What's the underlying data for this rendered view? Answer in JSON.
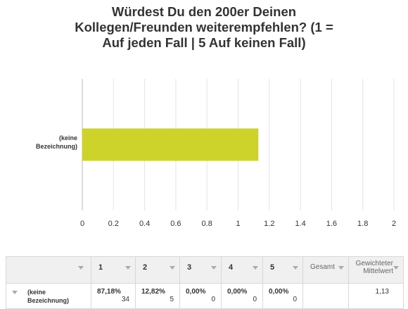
{
  "title_lines": [
    "Würdest Du den 200er Deinen",
    "Kollegen/Freunden weiterempfehlen? (1 =",
    "Auf jeden Fall | 5 Auf keinen Fall)"
  ],
  "chart_data": {
    "type": "bar",
    "orientation": "horizontal",
    "categories": [
      "(keine Bezeichnung)"
    ],
    "values": [
      1.13
    ],
    "xlim": [
      0,
      2
    ],
    "xticks": [
      "0",
      "0.2",
      "0.4",
      "0.6",
      "0.8",
      "1",
      "1.2",
      "1.4",
      "1.6",
      "1.8",
      "2"
    ],
    "grid": true,
    "bar_color": "#cdd32a"
  },
  "table": {
    "headers": [
      "1",
      "2",
      "3",
      "4",
      "5",
      "Gesamt",
      "Gewichteter Mittelwert"
    ],
    "row_label": "(keine Bezeichnung)",
    "cells": [
      {
        "pct": "87,18%",
        "count": "34"
      },
      {
        "pct": "12,82%",
        "count": "5"
      },
      {
        "pct": "0,00%",
        "count": "0"
      },
      {
        "pct": "0,00%",
        "count": "0"
      },
      {
        "pct": "0,00%",
        "count": "0"
      }
    ],
    "total": "",
    "weighted_avg": "1,13"
  }
}
